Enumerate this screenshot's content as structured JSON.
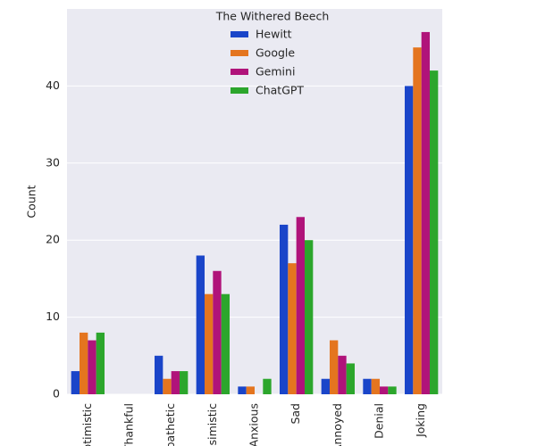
{
  "chart_data": {
    "type": "bar",
    "categories": [
      "Optimistic",
      "Thankful",
      "Empathetic",
      "Pessimistic",
      "Anxious",
      "Sad",
      "Annoyed",
      "Denial",
      "Joking"
    ],
    "series": [
      {
        "name": "Hewitt",
        "color": "#1a45c9",
        "values": [
          3,
          0,
          5,
          18,
          1,
          22,
          2,
          2,
          40
        ]
      },
      {
        "name": "Google",
        "color": "#e4751f",
        "values": [
          8,
          0,
          2,
          13,
          1,
          17,
          7,
          2,
          45
        ]
      },
      {
        "name": "Gemini",
        "color": "#b0137a",
        "values": [
          7,
          0,
          3,
          16,
          0,
          23,
          5,
          1,
          47
        ]
      },
      {
        "name": "ChatGPT",
        "color": "#2ca62c",
        "values": [
          8,
          0,
          3,
          13,
          2,
          20,
          4,
          1,
          42
        ]
      }
    ],
    "legend_title": "The Withered Beech",
    "ylabel": "Count",
    "ylim": [
      0,
      50
    ],
    "yticks": [
      0,
      10,
      20,
      30,
      40
    ],
    "grid": true
  }
}
